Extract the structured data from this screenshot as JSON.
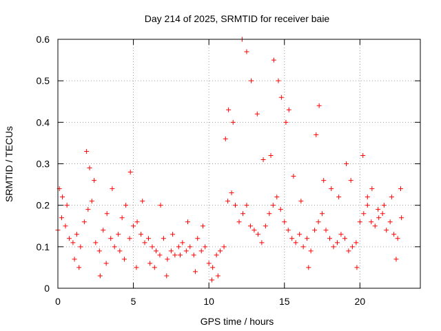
{
  "chart_data": {
    "type": "scatter",
    "title": "Day 214 of 2025, SRMTID for receiver baie",
    "xlabel": "GPS time / hours",
    "ylabel": "SRMTID / TECUs",
    "xlim": [
      0,
      24
    ],
    "ylim": [
      0,
      0.6
    ],
    "xticks": [
      0,
      5,
      10,
      15,
      20
    ],
    "yticks": [
      0,
      0.1,
      0.2,
      0.3,
      0.4,
      0.5,
      0.6
    ],
    "xtick_labels": [
      "0",
      "5",
      "10",
      "15",
      "20"
    ],
    "ytick_labels": [
      "0",
      "0.1",
      "0.2",
      "0.3",
      "0.4",
      "0.5",
      "0.6"
    ],
    "grid": true,
    "marker": "+",
    "color": "#ff0000",
    "series": [
      {
        "name": "baie",
        "x": [
          0.0,
          0.25,
          0.5,
          0.75,
          1.0,
          1.25,
          1.5,
          1.75,
          2.0,
          2.25,
          2.5,
          2.75,
          3.0,
          3.25,
          3.5,
          3.75,
          4.0,
          4.25,
          4.5,
          4.75,
          5.0,
          5.25,
          5.5,
          5.75,
          6.0,
          6.25,
          6.5,
          6.75,
          7.0,
          7.25,
          7.5,
          7.75,
          8.0,
          8.25,
          8.5,
          8.75,
          9.0,
          9.25,
          9.5,
          9.75,
          10.0,
          10.25,
          10.5,
          10.75,
          11.0,
          11.25,
          11.5,
          11.75,
          12.0,
          12.25,
          12.5,
          12.75,
          13.0,
          13.25,
          13.5,
          13.75,
          14.0,
          14.25,
          14.5,
          14.75,
          15.0,
          15.25,
          15.5,
          15.75,
          16.0,
          16.25,
          16.5,
          16.75,
          17.0,
          17.25,
          17.5,
          17.75,
          18.0,
          18.25,
          18.5,
          18.75,
          19.0,
          19.25,
          19.5,
          19.75,
          20.0,
          20.25,
          20.5,
          20.75,
          21.0,
          21.25,
          21.5,
          21.75,
          22.0,
          22.25,
          22.5,
          22.75,
          0.1,
          0.3,
          0.6,
          1.1,
          1.4,
          1.9,
          2.1,
          2.4,
          2.8,
          3.2,
          3.6,
          4.1,
          4.4,
          4.8,
          5.2,
          5.6,
          6.1,
          6.4,
          6.8,
          7.2,
          7.6,
          8.1,
          8.6,
          9.1,
          9.6,
          10.2,
          10.6,
          11.1,
          11.3,
          11.6,
          12.2,
          12.5,
          12.8,
          13.2,
          13.6,
          14.1,
          14.3,
          14.6,
          14.8,
          15.1,
          15.3,
          15.6,
          16.1,
          16.6,
          17.1,
          17.3,
          17.6,
          18.1,
          18.6,
          19.1,
          19.4,
          19.8,
          20.2,
          20.5,
          20.8,
          21.2,
          21.6,
          22.1,
          22.4,
          22.7
        ],
        "y": [
          0.14,
          0.17,
          0.15,
          0.12,
          0.11,
          0.13,
          0.1,
          0.16,
          0.19,
          0.21,
          0.11,
          0.09,
          0.14,
          0.18,
          0.12,
          0.1,
          0.13,
          0.17,
          0.2,
          0.12,
          0.15,
          0.16,
          0.13,
          0.11,
          0.12,
          0.1,
          0.09,
          0.08,
          0.12,
          0.07,
          0.09,
          0.08,
          0.1,
          0.11,
          0.09,
          0.1,
          0.08,
          0.12,
          0.09,
          0.1,
          0.06,
          0.05,
          0.08,
          0.09,
          0.1,
          0.21,
          0.23,
          0.2,
          0.16,
          0.18,
          0.2,
          0.15,
          0.14,
          0.13,
          0.11,
          0.15,
          0.18,
          0.2,
          0.22,
          0.19,
          0.16,
          0.14,
          0.12,
          0.11,
          0.13,
          0.1,
          0.12,
          0.09,
          0.14,
          0.16,
          0.18,
          0.14,
          0.12,
          0.1,
          0.11,
          0.13,
          0.12,
          0.09,
          0.1,
          0.11,
          0.16,
          0.18,
          0.2,
          0.16,
          0.15,
          0.17,
          0.18,
          0.14,
          0.16,
          0.13,
          0.12,
          0.17,
          0.24,
          0.22,
          0.2,
          0.07,
          0.05,
          0.33,
          0.29,
          0.26,
          0.03,
          0.06,
          0.24,
          0.09,
          0.07,
          0.28,
          0.05,
          0.21,
          0.06,
          0.05,
          0.2,
          0.03,
          0.13,
          0.08,
          0.16,
          0.04,
          0.15,
          0.02,
          0.03,
          0.36,
          0.43,
          0.4,
          0.6,
          0.57,
          0.5,
          0.42,
          0.31,
          0.32,
          0.55,
          0.5,
          0.46,
          0.4,
          0.43,
          0.27,
          0.21,
          0.05,
          0.37,
          0.44,
          0.26,
          0.24,
          0.22,
          0.3,
          0.26,
          0.05,
          0.32,
          0.22,
          0.24,
          0.19,
          0.2,
          0.22,
          0.07,
          0.24
        ]
      }
    ]
  }
}
